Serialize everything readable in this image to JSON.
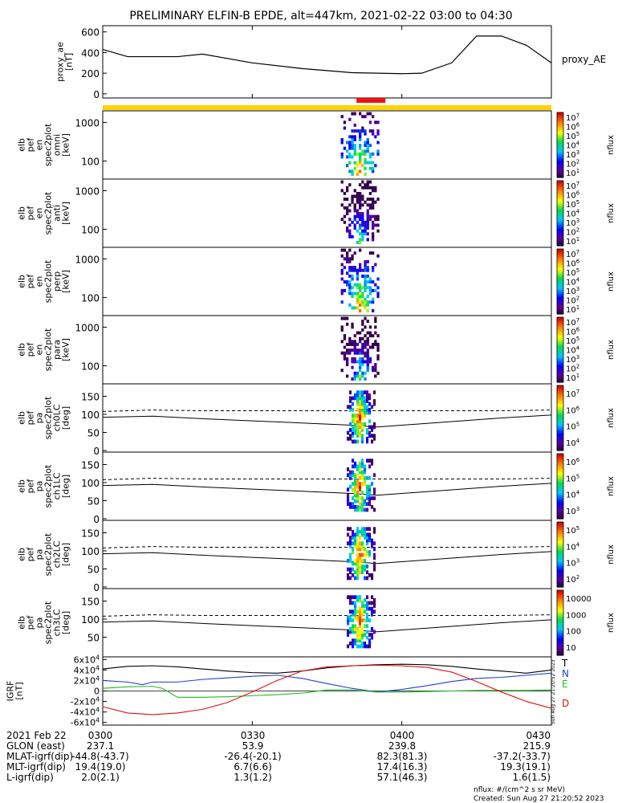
{
  "title": "PRELIMINARY ELFIN-B EPDE, alt=447km, 2021-02-22 03:00 to 04:30",
  "chart_data": {
    "type": "stacked-timeseries",
    "time_range": [
      "03:00",
      "04:30"
    ],
    "time_ticks": [
      "0300",
      "0330",
      "0400",
      "0430"
    ],
    "ae_panel": {
      "type": "line",
      "ylabel": [
        "proxy_ae",
        "[nT]"
      ],
      "yticks": [
        "0",
        "200",
        "400",
        "600"
      ],
      "ylim": [
        -40,
        660
      ],
      "legend": "proxy_AE",
      "series": {
        "t": [
          0,
          5,
          15,
          20,
          30,
          40,
          50,
          60,
          64,
          70,
          75,
          80,
          85,
          90
        ],
        "v": [
          430,
          360,
          360,
          385,
          300,
          245,
          205,
          195,
          200,
          300,
          560,
          560,
          470,
          300
        ]
      }
    },
    "orbit_bars": {
      "yellow": {
        "t_start": 0,
        "t_end": 90,
        "color": "#ffd400"
      },
      "red": {
        "t_start": 50.9,
        "t_end": 56.7,
        "color": "#ee1111"
      }
    },
    "energy_panels": [
      {
        "label": [
          "elb",
          "pef",
          "en",
          "spec2plot",
          "omni",
          "[keV]"
        ],
        "yticks": [
          "100",
          "1000"
        ],
        "cbar_ticks": [
          "10^1",
          "10^2",
          "10^3",
          "10^4",
          "10^5",
          "10^6",
          "10^7"
        ],
        "cbar_label": "nflux"
      },
      {
        "label": [
          "elb",
          "pef",
          "en",
          "spec2plot",
          "anti",
          "[keV]"
        ],
        "yticks": [
          "100",
          "1000"
        ],
        "cbar_ticks": [
          "10^1",
          "10^2",
          "10^3",
          "10^4",
          "10^5",
          "10^6",
          "10^7"
        ],
        "cbar_label": "nflux"
      },
      {
        "label": [
          "elb",
          "pef",
          "en",
          "spec2plot",
          "perp",
          "[keV]"
        ],
        "yticks": [
          "100",
          "1000"
        ],
        "cbar_ticks": [
          "10^1",
          "10^2",
          "10^3",
          "10^4",
          "10^5",
          "10^6",
          "10^7"
        ],
        "cbar_label": "nflux"
      },
      {
        "label": [
          "elb",
          "pef",
          "en",
          "spec2plot",
          "para",
          "[keV]"
        ],
        "yticks": [
          "100",
          "1000"
        ],
        "cbar_ticks": [
          "10^1",
          "10^2",
          "10^3",
          "10^4",
          "10^5",
          "10^6",
          "10^7"
        ],
        "cbar_label": "nflux"
      }
    ],
    "pitch_panels": [
      {
        "label": [
          "elb",
          "pef",
          "pa",
          "spec2plot",
          "ch0LC",
          "[deg]"
        ],
        "yticks": [
          "0",
          "50",
          "100",
          "150"
        ],
        "cbar_ticks": [
          "10^4",
          "10^5",
          "10^6",
          "10^7"
        ],
        "cbar_label": "nflux"
      },
      {
        "label": [
          "elb",
          "pef",
          "pa",
          "spec2plot",
          "ch1LC",
          "[deg]"
        ],
        "yticks": [
          "0",
          "50",
          "100",
          "150"
        ],
        "cbar_ticks": [
          "10^3",
          "10^4",
          "10^5",
          "10^6"
        ],
        "cbar_label": "nflux"
      },
      {
        "label": [
          "elb",
          "pef",
          "pa",
          "spec2plot",
          "ch2LC",
          "[deg]"
        ],
        "yticks": [
          "0",
          "50",
          "100",
          "150"
        ],
        "cbar_ticks": [
          "10^2",
          "10^3",
          "10^4",
          "10^5"
        ],
        "cbar_label": "nflux"
      },
      {
        "label": [
          "elb",
          "pef",
          "pa",
          "spec2plot",
          "ch3LC",
          "[deg]"
        ],
        "yticks": [
          "50",
          "100",
          "150"
        ],
        "cbar_ticks": [
          "10",
          "100",
          "1000",
          "10000"
        ],
        "cbar_label": "nflux"
      }
    ],
    "igrf_panel": {
      "ylabel": [
        "IGRF",
        "[nT]"
      ],
      "yticks": [
        "-6x10^4",
        "-4x10^4",
        "-2x10^4",
        "0",
        "2x10^4",
        "4x10^4",
        "6x10^4"
      ],
      "ylim": [
        -65000,
        65000
      ],
      "series": [
        {
          "name": "T",
          "color": "#000000",
          "t": [
            0,
            5,
            10,
            15,
            20,
            25,
            30,
            35,
            40,
            45,
            50,
            55,
            60,
            65,
            70,
            75,
            80,
            85,
            90
          ],
          "v": [
            42000,
            47000,
            48000,
            46000,
            42000,
            38000,
            35000,
            34000,
            38000,
            44000,
            48000,
            50000,
            51000,
            50000,
            47000,
            42000,
            38000,
            34000,
            40000
          ]
        },
        {
          "name": "N",
          "color": "#1f3fd6",
          "t": [
            0,
            5,
            8,
            10,
            15,
            20,
            25,
            30,
            35,
            40,
            45,
            50,
            55,
            60,
            65,
            70,
            75,
            80,
            85,
            90
          ],
          "v": [
            20000,
            17000,
            12000,
            17000,
            17000,
            22000,
            25000,
            28000,
            30000,
            24000,
            14000,
            5000,
            -2000,
            3000,
            10000,
            18000,
            24000,
            26000,
            30000,
            34000
          ]
        },
        {
          "name": "E",
          "color": "#22bb22",
          "t": [
            0,
            5,
            10,
            12,
            15,
            20,
            25,
            30,
            35,
            40,
            45,
            50,
            55,
            60,
            65,
            70,
            75,
            80,
            85,
            90
          ],
          "v": [
            5000,
            8000,
            9000,
            5000,
            -12000,
            -12000,
            -11000,
            -9000,
            -7000,
            -4000,
            2000,
            2000,
            -2000,
            -2000,
            -1000,
            0,
            1000,
            1000,
            1000,
            2000
          ]
        },
        {
          "name": "D",
          "color": "#dd1111",
          "t": [
            0,
            5,
            10,
            15,
            20,
            25,
            30,
            35,
            40,
            45,
            50,
            55,
            60,
            65,
            70,
            75,
            80,
            85,
            90
          ],
          "v": [
            -30000,
            -42000,
            -45000,
            -42000,
            -35000,
            -22000,
            -2000,
            20000,
            38000,
            46000,
            48000,
            49000,
            48000,
            45000,
            36000,
            18000,
            -2000,
            -20000,
            -33000
          ]
        }
      ]
    },
    "ephemeris": {
      "rows": [
        {
          "label": "2021 Feb 22",
          "values": [
            "0300",
            "0330",
            "0400",
            "0430"
          ]
        },
        {
          "label": "GLON (east)",
          "values": [
            "237.1",
            "53.9",
            "239.8",
            "215.9"
          ]
        },
        {
          "label": "MLAT-igrf(dip)",
          "values": [
            "-44.8(-43.7)",
            "-26.4(-20.1)",
            "82.3(81.3)",
            "-37.2(-33.7)"
          ]
        },
        {
          "label": "MLT-igrf(dip)",
          "values": [
            "19.4(19.0)",
            "6.7(6.6)",
            "17.4(16.3)",
            "19.3(19.1)"
          ]
        },
        {
          "label": "L-igrf(dip)",
          "values": [
            "2.0(2.1)",
            "1.3(1.2)",
            "57.1(46.3)",
            "1.6(1.5)"
          ]
        }
      ]
    }
  },
  "footer": {
    "units": "nflux: #/(cm^2 s sr MeV)",
    "created": "Created: Sun Aug 27 21:20:52 2023",
    "side_stamp": "Sun Aug 27 21:20:52 2023"
  }
}
